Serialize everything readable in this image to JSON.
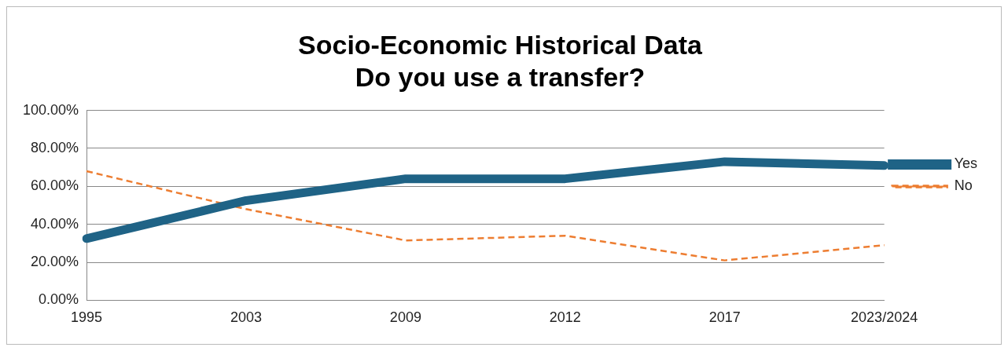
{
  "chart_data": {
    "type": "line",
    "title": "Socio-Economic Historical Data\nDo you use a transfer?",
    "categories": [
      "1995",
      "2003",
      "2009",
      "2012",
      "2017",
      "2023/2024"
    ],
    "series": [
      {
        "name": "Yes",
        "color": "#1f6386",
        "values": [
          32.5,
          52.5,
          64,
          64,
          73,
          71
        ],
        "line_style": "solid"
      },
      {
        "name": "No",
        "color": "#ed7d31",
        "values": [
          68,
          48,
          31.5,
          34,
          21,
          29
        ],
        "line_style": "dashed"
      }
    ],
    "ylim": [
      0,
      100
    ],
    "yticks": [
      {
        "value": 0,
        "label": "0.00%"
      },
      {
        "value": 20,
        "label": "20.00%"
      },
      {
        "value": 40,
        "label": "40.00%"
      },
      {
        "value": 60,
        "label": "60.00%"
      },
      {
        "value": 80,
        "label": "80.00%"
      },
      {
        "value": 100,
        "label": "100.00%"
      }
    ],
    "grid": "y",
    "legend": "right",
    "marker": "none"
  }
}
